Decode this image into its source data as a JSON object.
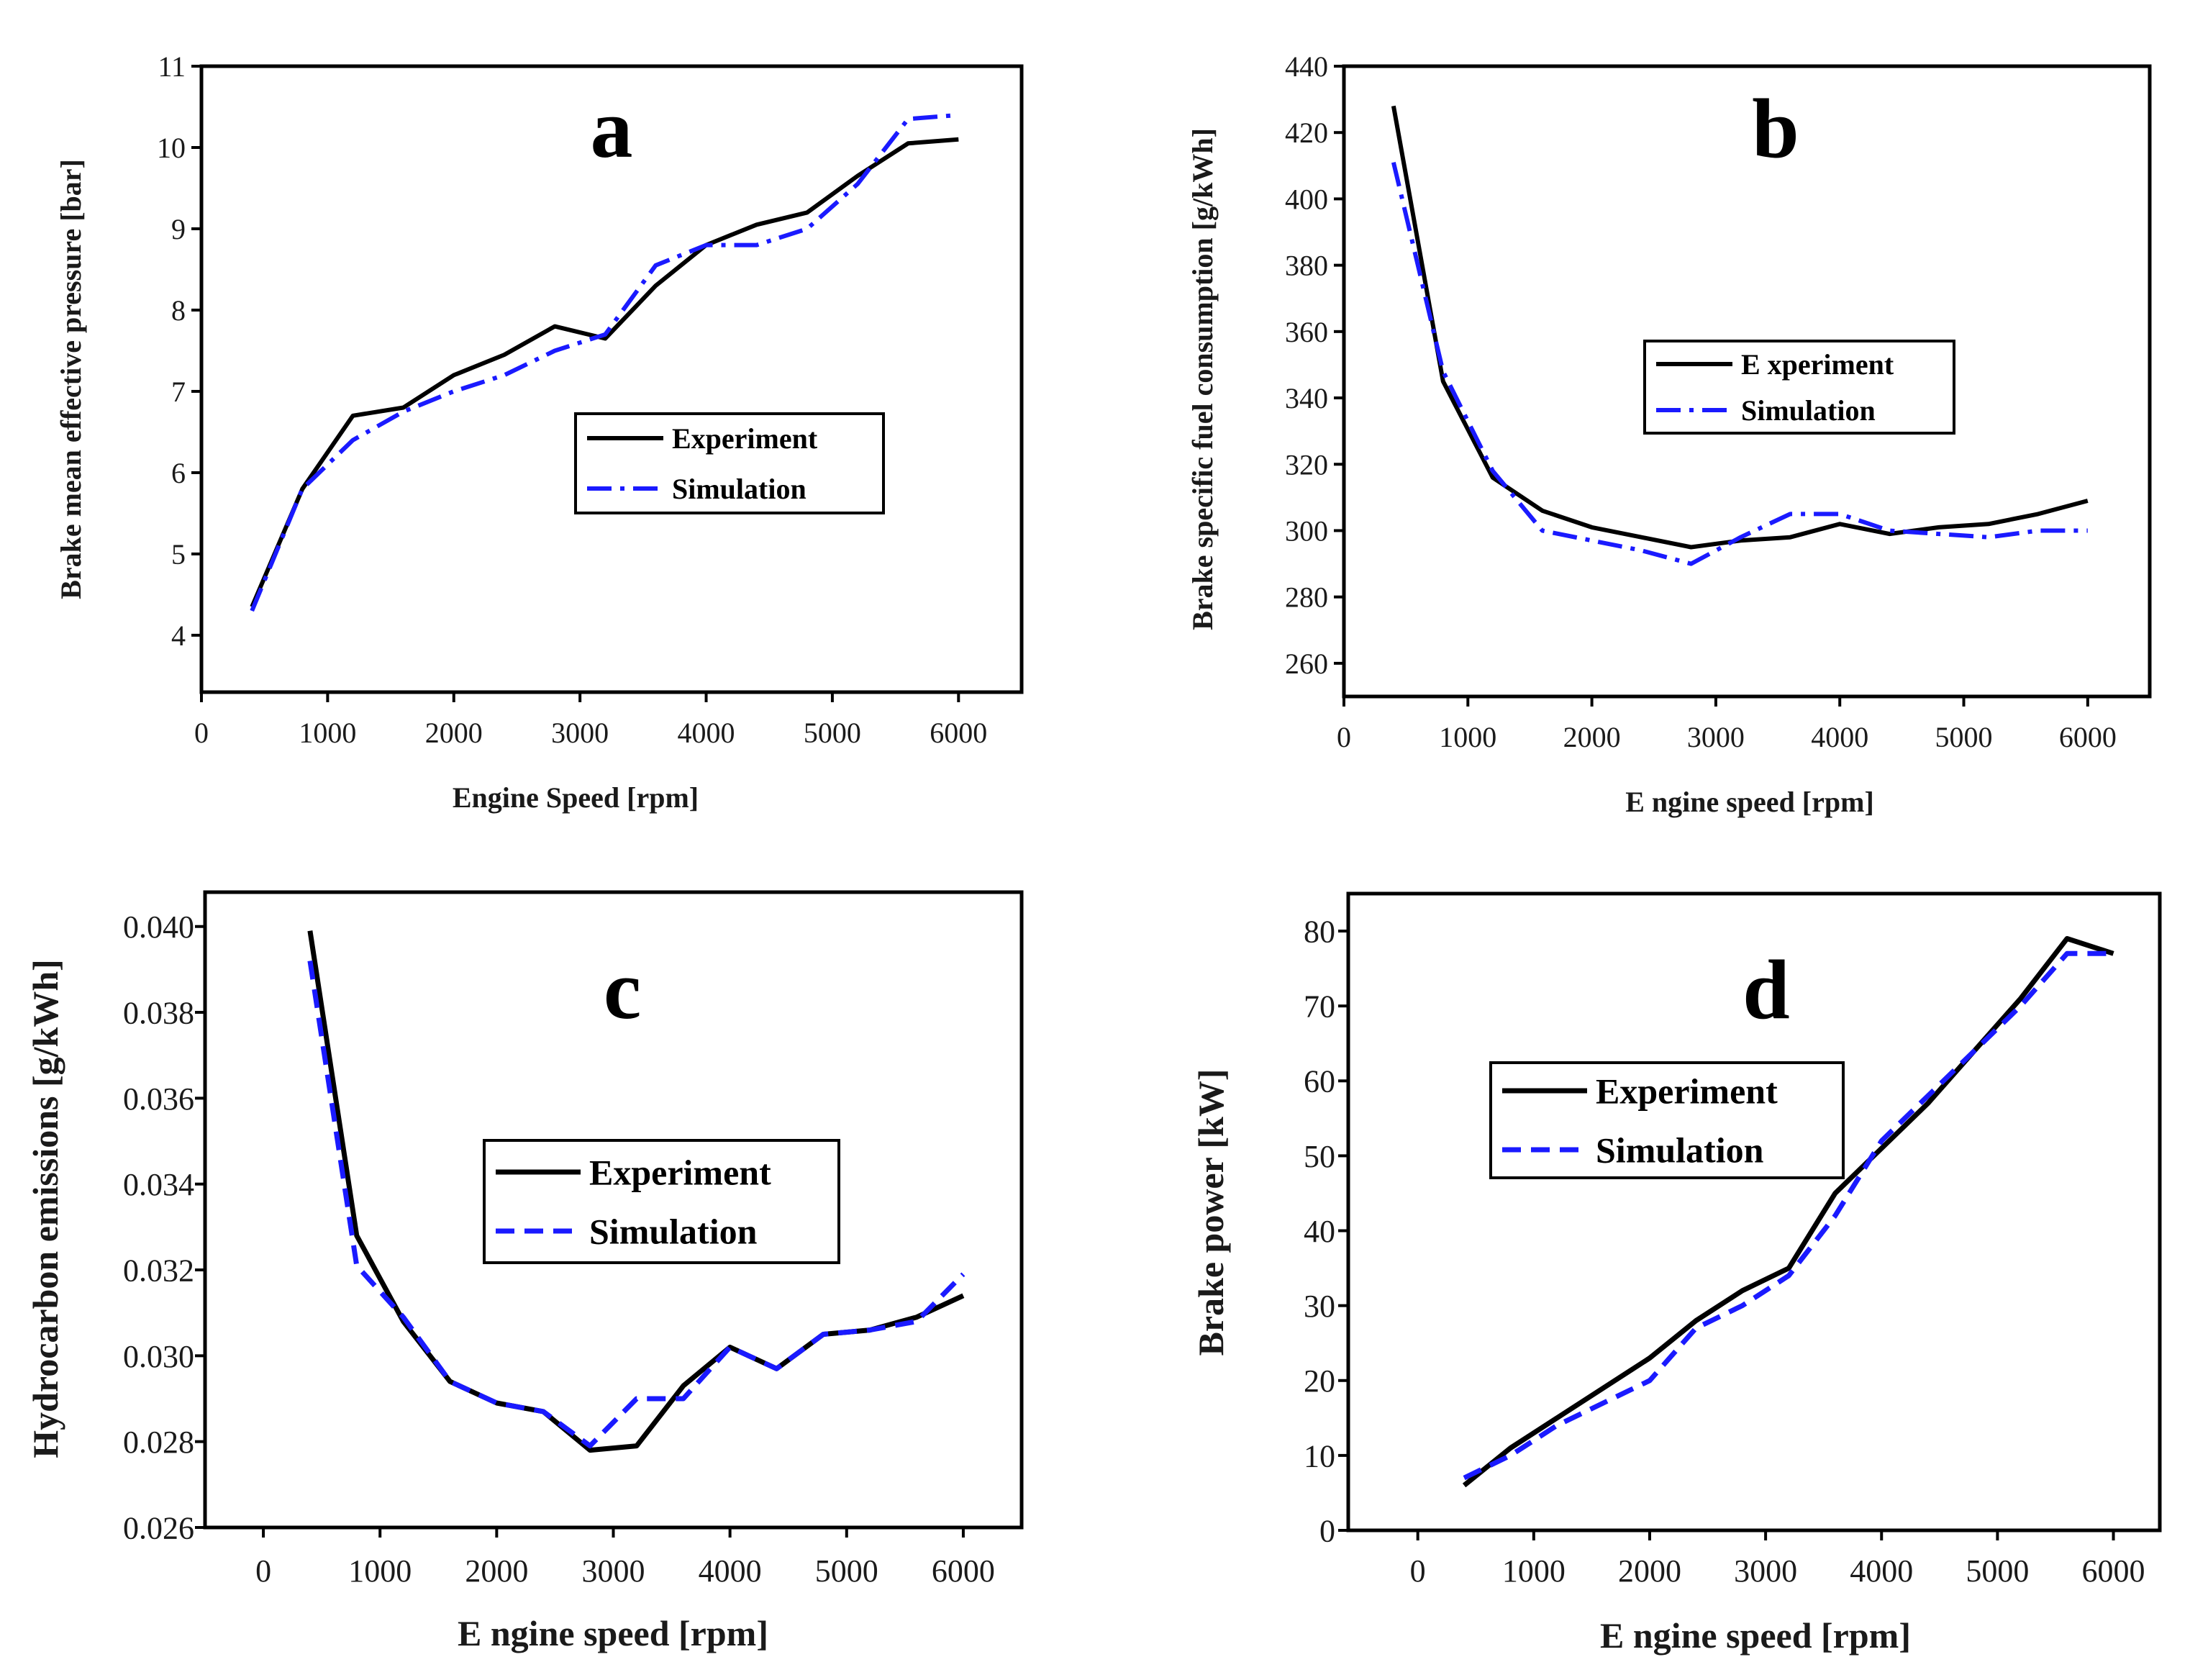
{
  "figure": {
    "background": "#ffffff"
  },
  "styles": {
    "experiment_color": "#000000",
    "simulation_color": "#1a1aff",
    "frame_color": "#000000"
  },
  "chart_data": [
    {
      "type": "line",
      "panel_label": "a",
      "xlabel": "Engine Speed [rpm]",
      "ylabel": "Brake mean effective pressure [bar]",
      "xlim": [
        0,
        6500
      ],
      "ylim": [
        3.3,
        11
      ],
      "xticks": [
        0,
        1000,
        2000,
        3000,
        4000,
        5000,
        6000
      ],
      "yticks": [
        4,
        5,
        6,
        7,
        8,
        9,
        10,
        11
      ],
      "ytick_labels": [
        "4",
        "5",
        "6",
        "7",
        "8",
        "9",
        "10",
        "11"
      ],
      "legend_position": "center-right",
      "series": [
        {
          "name": "Experiment",
          "style": "solid",
          "x": [
            400,
            800,
            1200,
            1600,
            2000,
            2400,
            2800,
            3200,
            3600,
            4000,
            4400,
            4800,
            5200,
            5600,
            6000
          ],
          "y": [
            4.35,
            5.8,
            6.7,
            6.8,
            7.2,
            7.45,
            7.8,
            7.65,
            8.3,
            8.8,
            9.05,
            9.2,
            9.65,
            10.05,
            10.1
          ]
        },
        {
          "name": "Simulation",
          "style": "dashdot",
          "x": [
            400,
            800,
            1200,
            1600,
            2000,
            2400,
            2800,
            3200,
            3600,
            4000,
            4400,
            4800,
            5200,
            5600,
            6000
          ],
          "y": [
            4.3,
            5.8,
            6.4,
            6.75,
            7.0,
            7.2,
            7.5,
            7.7,
            8.55,
            8.8,
            8.8,
            9.0,
            9.55,
            10.35,
            10.4
          ]
        }
      ]
    },
    {
      "type": "line",
      "panel_label": "b",
      "xlabel": "E ngine speed [rpm]",
      "ylabel": "Brake specific fuel consumption [g/kWh]",
      "xlim": [
        0,
        6500
      ],
      "ylim": [
        250,
        440
      ],
      "xticks": [
        0,
        1000,
        2000,
        3000,
        4000,
        5000,
        6000
      ],
      "yticks": [
        260,
        280,
        300,
        320,
        340,
        360,
        380,
        400,
        420,
        440
      ],
      "ytick_labels": [
        "260",
        "280",
        "300",
        "320",
        "340",
        "360",
        "380",
        "400",
        "420",
        "440"
      ],
      "legend_position": "center-right",
      "series": [
        {
          "name": "E xperiment",
          "style": "solid",
          "x": [
            400,
            800,
            1200,
            1600,
            2000,
            2400,
            2800,
            3200,
            3600,
            4000,
            4400,
            4800,
            5200,
            5600,
            6000
          ],
          "y": [
            428,
            345,
            316,
            306,
            301,
            298,
            295,
            297,
            298,
            302,
            299,
            301,
            302,
            305,
            309
          ]
        },
        {
          "name": "Simulation",
          "style": "dashdot",
          "x": [
            400,
            800,
            1200,
            1600,
            2000,
            2400,
            2800,
            3200,
            3600,
            4000,
            4400,
            4800,
            5200,
            5600,
            6000
          ],
          "y": [
            411,
            348,
            318,
            300,
            297,
            294,
            290,
            298,
            305,
            305,
            300,
            299,
            298,
            300,
            300
          ]
        }
      ]
    },
    {
      "type": "line",
      "panel_label": "c",
      "xlabel": "E ngine speed [rpm]",
      "ylabel": "Hydrocarbon emissions [g/kWh]",
      "xlim": [
        -500,
        6500
      ],
      "ylim": [
        0.026,
        0.0408
      ],
      "xticks": [
        0,
        1000,
        2000,
        3000,
        4000,
        5000,
        6000
      ],
      "yticks": [
        0.026,
        0.028,
        0.03,
        0.032,
        0.034,
        0.036,
        0.038,
        0.04
      ],
      "ytick_labels": [
        "0.026",
        "0.028",
        "0.030",
        "0.032",
        "0.034",
        "0.036",
        "0.038",
        "0.040"
      ],
      "legend_position": "center-right",
      "series": [
        {
          "name": "Experiment",
          "style": "solid",
          "x": [
            400,
            800,
            1200,
            1600,
            2000,
            2400,
            2800,
            3200,
            3600,
            4000,
            4400,
            4800,
            5200,
            5600,
            6000
          ],
          "y": [
            0.0399,
            0.0328,
            0.0308,
            0.0294,
            0.0289,
            0.0287,
            0.0278,
            0.0279,
            0.0293,
            0.0302,
            0.0297,
            0.0305,
            0.0306,
            0.0309,
            0.0314
          ]
        },
        {
          "name": "Simulation",
          "style": "dashed",
          "x": [
            400,
            800,
            1200,
            1600,
            2000,
            2400,
            2800,
            3200,
            3600,
            4000,
            4400,
            4800,
            5200,
            5600,
            6000
          ],
          "y": [
            0.0392,
            0.0321,
            0.0309,
            0.0294,
            0.0289,
            0.0287,
            0.0279,
            0.029,
            0.029,
            0.0302,
            0.0297,
            0.0305,
            0.0306,
            0.0308,
            0.0319
          ]
        }
      ]
    },
    {
      "type": "line",
      "panel_label": "d",
      "xlabel": "E ngine speed [rpm]",
      "ylabel": "Brake power [kW]",
      "xlim": [
        -600,
        6400
      ],
      "ylim": [
        0,
        85
      ],
      "xticks": [
        0,
        1000,
        2000,
        3000,
        4000,
        5000,
        6000
      ],
      "yticks": [
        0,
        10,
        20,
        30,
        40,
        50,
        60,
        70,
        80
      ],
      "ytick_labels": [
        "0",
        "10",
        "20",
        "30",
        "40",
        "50",
        "60",
        "70",
        "80"
      ],
      "legend_position": "top-left",
      "series": [
        {
          "name": "Experiment",
          "style": "solid",
          "x": [
            400,
            800,
            1200,
            1600,
            2000,
            2400,
            2800,
            3200,
            3600,
            4000,
            4400,
            4800,
            5200,
            5600,
            6000
          ],
          "y": [
            6,
            11,
            15,
            19,
            23,
            28,
            32,
            35,
            45,
            51,
            57,
            64,
            71,
            79,
            77
          ]
        },
        {
          "name": "Simulation",
          "style": "dashed",
          "x": [
            400,
            800,
            1200,
            1600,
            2000,
            2400,
            2800,
            3200,
            3600,
            4000,
            4400,
            4800,
            5200,
            5600,
            6000
          ],
          "y": [
            7,
            10,
            14,
            17,
            20,
            27,
            30,
            34,
            42,
            52,
            58,
            64,
            70,
            77,
            77
          ]
        }
      ]
    }
  ]
}
